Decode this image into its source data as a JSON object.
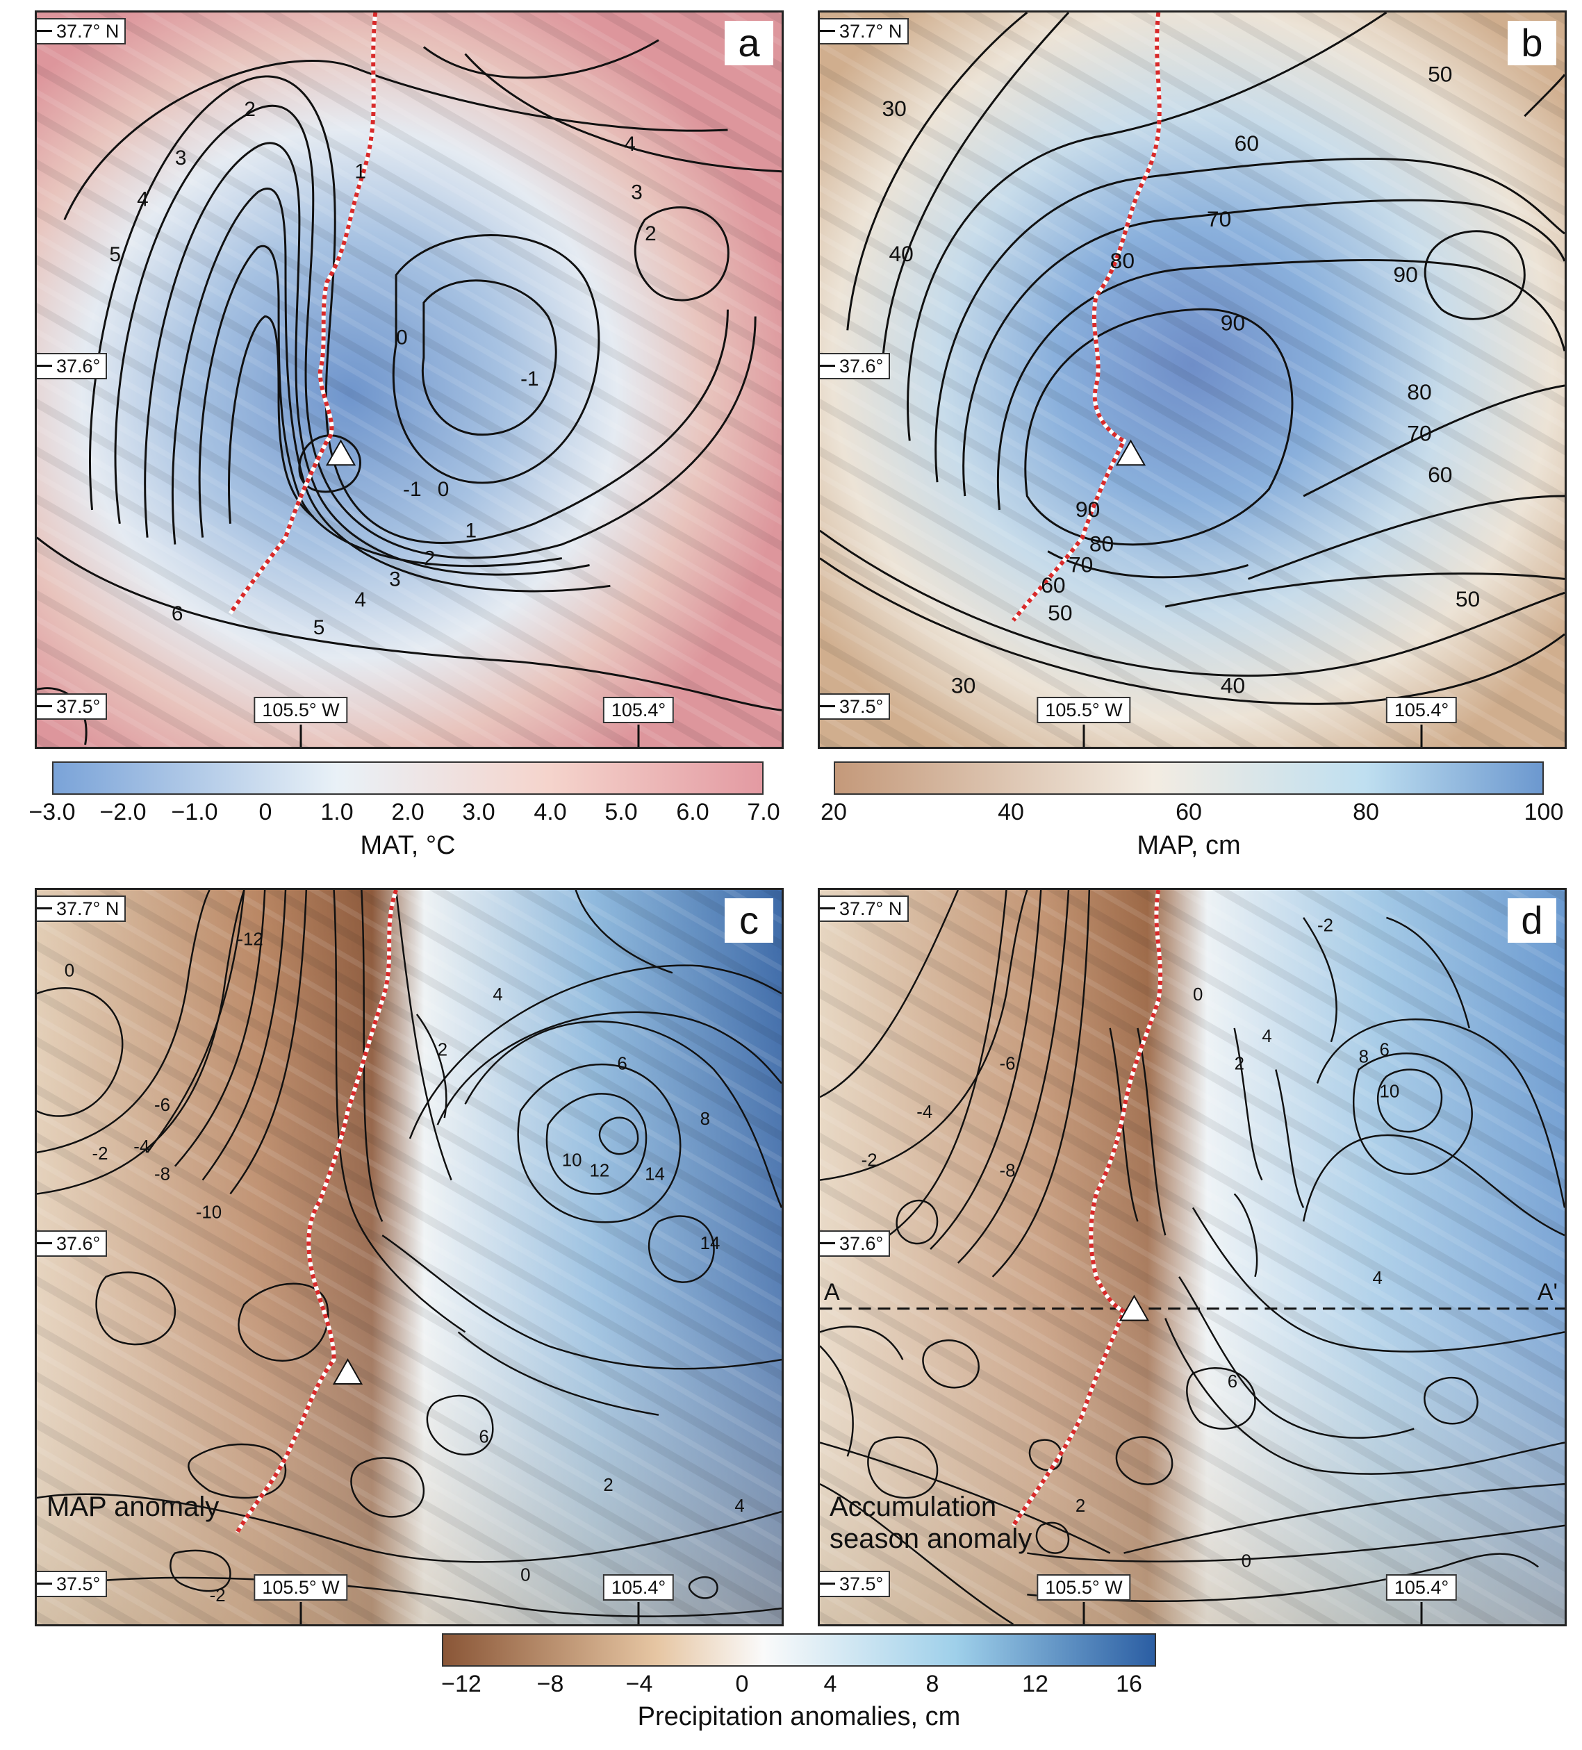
{
  "panels": [
    {
      "label": "a",
      "lat_top": "37.7° N",
      "lat_mid": "37.6°",
      "lat_bot": "37.5°",
      "lon_left": "105.5° W",
      "lon_right": "105.4°",
      "note": ""
    },
    {
      "label": "b",
      "lat_top": "37.7° N",
      "lat_mid": "37.6°",
      "lat_bot": "37.5°",
      "lon_left": "105.5° W",
      "lon_right": "105.4°",
      "note": ""
    },
    {
      "label": "c",
      "lat_top": "37.7° N",
      "lat_mid": "37.6°",
      "lat_bot": "37.5°",
      "lon_left": "105.5° W",
      "lon_right": "105.4°",
      "note": "MAP anomaly"
    },
    {
      "label": "d",
      "lat_top": "37.7° N",
      "lat_mid": "37.6°",
      "lat_bot": "37.5°",
      "lon_left": "105.5° W",
      "lon_right": "105.4°",
      "note_line1": "Accumulation",
      "note_line2": "season anomaly",
      "section_a": "A",
      "section_b": "A'"
    }
  ],
  "colorbars": [
    {
      "name": "mat",
      "title": "MAT, °C",
      "ticks": [
        "−3.0",
        "−2.0",
        "−1.0",
        "0",
        "1.0",
        "2.0",
        "3.0",
        "4.0",
        "5.0",
        "6.0",
        "7.0"
      ],
      "colors": [
        "#7aa3d8",
        "#e9f1f7",
        "#f5d4cc",
        "#e39aa2"
      ]
    },
    {
      "name": "map",
      "title": "MAP, cm",
      "ticks": [
        "20",
        "40",
        "60",
        "80",
        "100"
      ],
      "colors": [
        "#c4997a",
        "#f3ece2",
        "#bfdff0",
        "#6c98cf"
      ]
    },
    {
      "name": "anomaly",
      "title": "Precipitation anomalies, cm",
      "ticks": [
        "−12",
        "−8",
        "−4",
        "0",
        "4",
        "8",
        "12",
        "16"
      ],
      "colors": [
        "#8a5637",
        "#e6c6a3",
        "#fafafa",
        "#9fd0ea",
        "#2b5ea3"
      ]
    }
  ],
  "contours": {
    "a": [
      "6",
      "5",
      "4",
      "3",
      "2",
      "1",
      "0",
      "-1",
      "-1",
      "0",
      "1",
      "2",
      "3",
      "4",
      "5",
      "4",
      "3",
      "2"
    ],
    "b": [
      "30",
      "40",
      "50",
      "50",
      "60",
      "70",
      "80",
      "90",
      "90",
      "90",
      "80",
      "70",
      "60",
      "50",
      "40",
      "30",
      "60",
      "70",
      "80"
    ],
    "c": [
      "0",
      "-2",
      "-4",
      "-6",
      "-8",
      "-10",
      "-12",
      "2",
      "4",
      "6",
      "8",
      "10",
      "12",
      "14",
      "14",
      "0",
      "-2",
      "2",
      "4",
      "6"
    ],
    "d": [
      "-2",
      "-4",
      "-6",
      "-8",
      "0",
      "2",
      "4",
      "6",
      "8",
      "10",
      "-2",
      "0",
      "2",
      "4",
      "6"
    ]
  },
  "colors": {
    "divide": "#d82a2a",
    "frame": "#222222"
  }
}
